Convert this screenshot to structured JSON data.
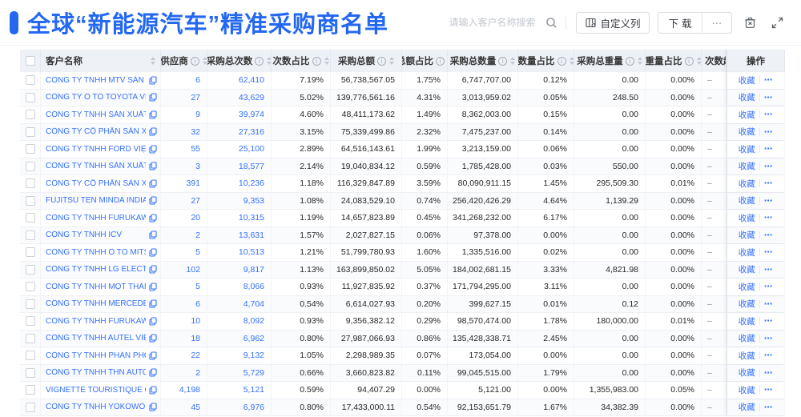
{
  "title": "全球“新能源汽车”精准采购商名单",
  "toolbar": {
    "search_placeholder": "请输入客户名称搜索",
    "search_icon": "magnifier",
    "custom_columns_label": "自定义列",
    "download_label": "下载",
    "more_icon": "⋯",
    "delete_icon": "trash",
    "fullscreen_icon": "expand"
  },
  "table": {
    "favorite_label": "收藏",
    "row_more_icon": "⋯",
    "columns": [
      {
        "key": "checkbox",
        "label": "",
        "info": false,
        "sort": false
      },
      {
        "key": "name",
        "label": "客户名称",
        "info": false,
        "sort": true
      },
      {
        "key": "supplier",
        "label": "供应商",
        "info": true,
        "sort": true
      },
      {
        "key": "count",
        "label": "采购总次数",
        "info": true,
        "sort": true
      },
      {
        "key": "count_pct",
        "label": "次数占比",
        "info": true,
        "sort": true
      },
      {
        "key": "amount",
        "label": "采购总额",
        "info": true,
        "sort": true
      },
      {
        "key": "amount_pct",
        "label": "总额占比",
        "info": true,
        "sort": true
      },
      {
        "key": "qty",
        "label": "采购总数量",
        "info": true,
        "sort": true
      },
      {
        "key": "qty_pct",
        "label": "数量占比",
        "info": true,
        "sort": true
      },
      {
        "key": "weight",
        "label": "采购总重量",
        "info": true,
        "sort": true
      },
      {
        "key": "weight_pct",
        "label": "重量占比",
        "info": true,
        "sort": true
      },
      {
        "key": "trend",
        "label": "次数趋势",
        "info": false,
        "sort": false
      },
      {
        "key": "action",
        "label": "操作",
        "info": false,
        "sort": false
      }
    ],
    "rows": [
      {
        "name": "CÔNG TY TNHH MTV SẢN XUẤ...",
        "supplier": "6",
        "count": "62,410",
        "count_pct": "7.19%",
        "amount": "56,738,567.05",
        "amount_pct": "1.75%",
        "qty": "6,747,707.00",
        "qty_pct": "0.12%",
        "weight": "0.00",
        "weight_pct": "0.00%",
        "trend": "–"
      },
      {
        "name": "CÔNG TY Ô TÔ TOYOTA VIỆT ...",
        "supplier": "27",
        "count": "43,629",
        "count_pct": "5.02%",
        "amount": "139,776,561.16",
        "amount_pct": "4.31%",
        "qty": "3,013,959.02",
        "qty_pct": "0.05%",
        "weight": "248.50",
        "weight_pct": "0.00%",
        "trend": "–"
      },
      {
        "name": "CÔNG TY TNHH SẢN XUẤT VÀ ...",
        "supplier": "9",
        "count": "39,974",
        "count_pct": "4.60%",
        "amount": "48,411,173.62",
        "amount_pct": "1.49%",
        "qty": "8,362,003.00",
        "qty_pct": "0.15%",
        "weight": "0.00",
        "weight_pct": "0.00%",
        "trend": "–"
      },
      {
        "name": "CÔNG TY CỔ PHẦN SẢN XUẤT...",
        "supplier": "32",
        "count": "27,316",
        "count_pct": "3.15%",
        "amount": "75,339,499.86",
        "amount_pct": "2.32%",
        "qty": "7,475,237.00",
        "qty_pct": "0.14%",
        "weight": "0.00",
        "weight_pct": "0.00%",
        "trend": "–"
      },
      {
        "name": "CÔNG TY TNHH FORD VIỆT NAM",
        "supplier": "55",
        "count": "25,100",
        "count_pct": "2.89%",
        "amount": "64,516,143.61",
        "amount_pct": "1.99%",
        "qty": "3,213,159.00",
        "qty_pct": "0.06%",
        "weight": "0.00",
        "weight_pct": "0.00%",
        "trend": "–"
      },
      {
        "name": "CÔNG TY TNHH SẢN XUẤT VÀ ...",
        "supplier": "3",
        "count": "18,577",
        "count_pct": "2.14%",
        "amount": "19,040,834.12",
        "amount_pct": "0.59%",
        "qty": "1,785,428.00",
        "qty_pct": "0.03%",
        "weight": "550.00",
        "weight_pct": "0.00%",
        "trend": "–"
      },
      {
        "name": "CÔNG TY CỔ PHẦN SẢN XUẤT...",
        "supplier": "391",
        "count": "10,236",
        "count_pct": "1.18%",
        "amount": "116,329,847.89",
        "amount_pct": "3.59%",
        "qty": "80,090,911.15",
        "qty_pct": "1.45%",
        "weight": "295,509.30",
        "weight_pct": "0.01%",
        "trend": "–"
      },
      {
        "name": "FUJITSU TEN MINDA INDIA PVT...",
        "supplier": "27",
        "count": "9,353",
        "count_pct": "1.08%",
        "amount": "24,083,529.10",
        "amount_pct": "0.74%",
        "qty": "256,420,426.29",
        "qty_pct": "4.64%",
        "weight": "1,139.29",
        "weight_pct": "0.00%",
        "trend": "–"
      },
      {
        "name": "CÔNG TY TNHH FURUKAWA A...",
        "supplier": "20",
        "count": "10,315",
        "count_pct": "1.19%",
        "amount": "14,657,823.89",
        "amount_pct": "0.45%",
        "qty": "341,268,232.00",
        "qty_pct": "6.17%",
        "weight": "0.00",
        "weight_pct": "0.00%",
        "trend": "–"
      },
      {
        "name": "CÔNG TY TNHH ICV",
        "supplier": "2",
        "count": "13,631",
        "count_pct": "1.57%",
        "amount": "2,027,827.15",
        "amount_pct": "0.06%",
        "qty": "97,378.00",
        "qty_pct": "0.00%",
        "weight": "0.00",
        "weight_pct": "0.00%",
        "trend": "–"
      },
      {
        "name": "CÔNG TY TNHH Ô TÔ MITSUBI...",
        "supplier": "5",
        "count": "10,513",
        "count_pct": "1.21%",
        "amount": "51,799,780.93",
        "amount_pct": "1.60%",
        "qty": "1,335,516.00",
        "qty_pct": "0.02%",
        "weight": "0.00",
        "weight_pct": "0.00%",
        "trend": "–"
      },
      {
        "name": "CÔNG TY TNHH LG ELECTRON...",
        "supplier": "102",
        "count": "9,817",
        "count_pct": "1.13%",
        "amount": "163,899,850.02",
        "amount_pct": "5.05%",
        "qty": "184,002,681.15",
        "qty_pct": "3.33%",
        "weight": "4,821.98",
        "weight_pct": "0.00%",
        "trend": "–"
      },
      {
        "name": "CÔNG TY TNHH MỘT THÀNH V...",
        "supplier": "5",
        "count": "8,066",
        "count_pct": "0.93%",
        "amount": "11,927,835.92",
        "amount_pct": "0.37%",
        "qty": "171,794,295.00",
        "qty_pct": "3.11%",
        "weight": "0.00",
        "weight_pct": "0.00%",
        "trend": "–"
      },
      {
        "name": "CÔNG TY TNHH MERCEDES–B...",
        "supplier": "6",
        "count": "4,704",
        "count_pct": "0.54%",
        "amount": "6,614,027.93",
        "amount_pct": "0.20%",
        "qty": "399,627.15",
        "qty_pct": "0.01%",
        "weight": "0.12",
        "weight_pct": "0.00%",
        "trend": "–"
      },
      {
        "name": "CÔNG TY TNHH FURUKAWA A...",
        "supplier": "10",
        "count": "8,092",
        "count_pct": "0.93%",
        "amount": "9,356,382.12",
        "amount_pct": "0.29%",
        "qty": "98,570,474.00",
        "qty_pct": "1.78%",
        "weight": "180,000.00",
        "weight_pct": "0.01%",
        "trend": "–"
      },
      {
        "name": "CÔNG TY TNHH AUTEL VIỆT N...",
        "supplier": "18",
        "count": "6,962",
        "count_pct": "0.80%",
        "amount": "27,987,066.93",
        "amount_pct": "0.86%",
        "qty": "135,428,338.71",
        "qty_pct": "2.45%",
        "weight": "0.00",
        "weight_pct": "0.00%",
        "trend": "–"
      },
      {
        "name": "CÔNG TY TNHH PHÂN PHỐI T...",
        "supplier": "22",
        "count": "9,132",
        "count_pct": "1.05%",
        "amount": "2,298,989.35",
        "amount_pct": "0.07%",
        "qty": "173,054.00",
        "qty_pct": "0.00%",
        "weight": "0.00",
        "weight_pct": "0.00%",
        "trend": "–"
      },
      {
        "name": "CÔNG TY TNHH THN AUTOPAR...",
        "supplier": "2",
        "count": "5,729",
        "count_pct": "0.66%",
        "amount": "3,660,823.82",
        "amount_pct": "0.11%",
        "qty": "99,045,515.00",
        "qty_pct": "1.79%",
        "weight": "0.00",
        "weight_pct": "0.00%",
        "trend": "–"
      },
      {
        "name": "VIGNETTE TOURISTIQUE G UNI...",
        "supplier": "4,198",
        "count": "5,121",
        "count_pct": "0.59%",
        "amount": "94,407.29",
        "amount_pct": "0.00%",
        "qty": "5,121.00",
        "qty_pct": "0.00%",
        "weight": "1,355,983.00",
        "weight_pct": "0.05%",
        "trend": "–"
      },
      {
        "name": "CÔNG TY TNHH YOKOWO VIỆT...",
        "supplier": "45",
        "count": "6,976",
        "count_pct": "0.80%",
        "amount": "17,433,000.11",
        "amount_pct": "0.54%",
        "qty": "92,153,651.79",
        "qty_pct": "1.67%",
        "weight": "34,382.39",
        "weight_pct": "0.00%",
        "trend": "–"
      }
    ]
  },
  "colors": {
    "accent": "#2468f2",
    "link": "#3370ff",
    "header_bg": "#eef1f6"
  }
}
